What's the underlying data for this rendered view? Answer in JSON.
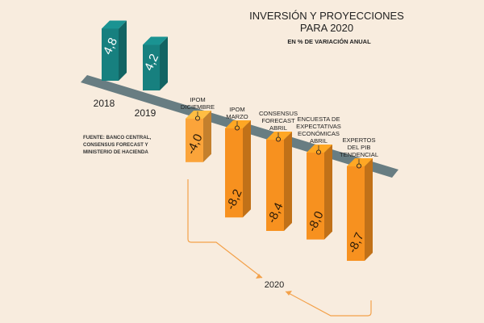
{
  "chart_data": {
    "type": "bar",
    "title": "INVERSIÓN Y PROYECCIONES",
    "title_line2": "PARA 2020",
    "subtitle": "EN % DE VARIACIÓN ANUAL",
    "source": [
      "FUENTE: BANCO CENTRAL,",
      "CONSENSUS FORECAST Y",
      "MINISTERIO DE HACIENDA"
    ],
    "group_label_2020": "2020",
    "ylim": [
      -8.7,
      4.8
    ],
    "bars": [
      {
        "category": "2018",
        "label_lines": [
          "2018"
        ],
        "value": 4.8,
        "display": "4,8",
        "color": "#17807f"
      },
      {
        "category": "2019",
        "label_lines": [
          "2019"
        ],
        "value": 4.2,
        "display": "4,2",
        "color": "#17807f"
      },
      {
        "category": "IPOM Diciembre",
        "label_lines": [
          "IPOM",
          "DICIEMBRE"
        ],
        "value": -4.0,
        "display": "-4,0",
        "color": "#fba43a"
      },
      {
        "category": "IPOM Marzo",
        "label_lines": [
          "IPOM",
          "MARZO"
        ],
        "value": -8.2,
        "display": "-8,2",
        "color": "#f7911f"
      },
      {
        "category": "Consensus Forecast Abril",
        "label_lines": [
          "CONSENSUS",
          "FORECAST",
          "ABRIL"
        ],
        "value": -8.4,
        "display": "-8,4",
        "color": "#f7911f"
      },
      {
        "category": "Encuesta de Expectativas Económicas Abril",
        "label_lines": [
          "ENCUESTA DE",
          "EXPECTATIVAS",
          "ECONÓMICAS",
          "ABRIL"
        ],
        "value": -8.0,
        "display": "-8,0",
        "color": "#f7911f"
      },
      {
        "category": "Expertos del PIB Tendencial",
        "label_lines": [
          "EXPERTOS",
          "DEL PIB",
          "TENDENCIAL"
        ],
        "value": -8.7,
        "display": "-8,7",
        "color": "#f7911f"
      }
    ]
  },
  "colors": {
    "background": "#f8ecde",
    "positive": "#17807f",
    "negative": "#f7911f",
    "axis": "#3f5e68",
    "bracket": "#f3a14a"
  }
}
